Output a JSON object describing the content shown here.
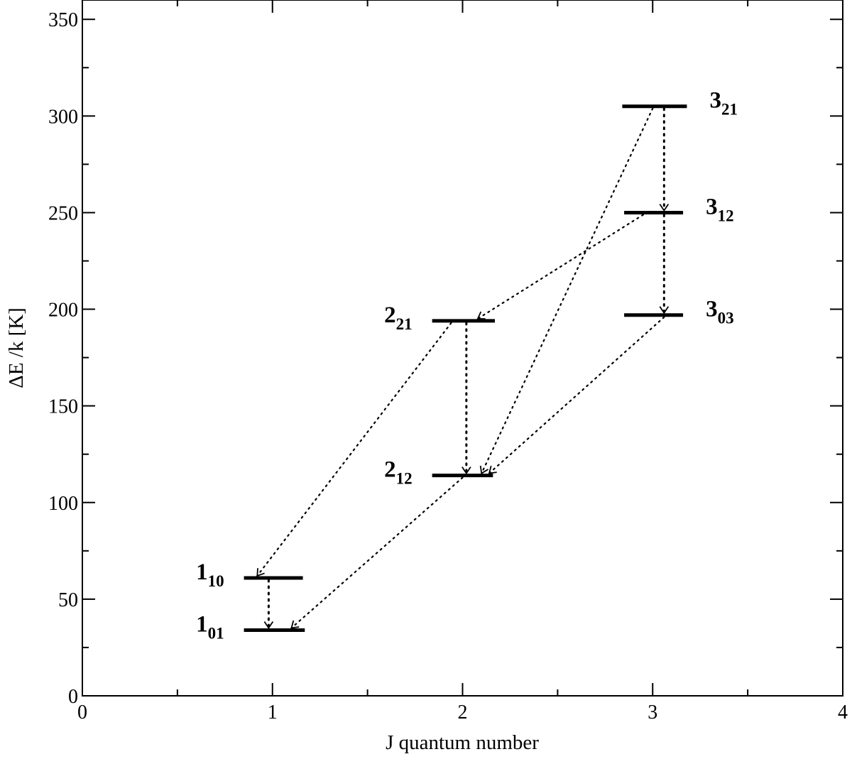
{
  "chart_data": {
    "type": "energy-level-diagram",
    "xlabel": "J  quantum number",
    "ylabel": "ΔE /k [K]",
    "xlim": [
      0,
      4
    ],
    "ylim": [
      0,
      360
    ],
    "x_ticks": [
      0,
      1,
      2,
      3,
      4
    ],
    "y_ticks": [
      0,
      50,
      100,
      150,
      200,
      250,
      300,
      350
    ],
    "x_minor_step": 0.5,
    "y_minor_step": 25,
    "grid": false,
    "levels": [
      {
        "id": "1_01",
        "main": "1",
        "sub": "01",
        "J": 1,
        "x0": 0.85,
        "x1": 1.17,
        "energy": 34
      },
      {
        "id": "1_10",
        "main": "1",
        "sub": "10",
        "J": 1,
        "x0": 0.85,
        "x1": 1.16,
        "energy": 61
      },
      {
        "id": "2_12",
        "main": "2",
        "sub": "12",
        "J": 2,
        "x0": 1.84,
        "x1": 2.16,
        "energy": 114
      },
      {
        "id": "2_21",
        "main": "2",
        "sub": "21",
        "J": 2,
        "x0": 1.84,
        "x1": 2.17,
        "energy": 194
      },
      {
        "id": "3_03",
        "main": "3",
        "sub": "03",
        "J": 3,
        "x0": 2.85,
        "x1": 3.16,
        "energy": 197
      },
      {
        "id": "3_12",
        "main": "3",
        "sub": "12",
        "J": 3,
        "x0": 2.85,
        "x1": 3.16,
        "energy": 250
      },
      {
        "id": "3_21",
        "main": "3",
        "sub": "21",
        "J": 3,
        "x0": 2.84,
        "x1": 3.18,
        "energy": 305
      }
    ],
    "transitions": [
      {
        "from": "1_10",
        "to": "1_01",
        "x_from": 0.98,
        "x_to": 0.98
      },
      {
        "from": "2_21",
        "to": "2_12",
        "x_from": 2.02,
        "x_to": 2.02
      },
      {
        "from": "3_21",
        "to": "3_12",
        "x_from": 3.06,
        "x_to": 3.06
      },
      {
        "from": "3_12",
        "to": "3_03",
        "x_from": 3.06,
        "x_to": 3.06
      },
      {
        "from": "2_21",
        "to": "1_10",
        "x_from": 1.94,
        "x_to": 0.92
      },
      {
        "from": "2_12",
        "to": "1_01",
        "x_from": 2.0,
        "x_to": 1.1
      },
      {
        "from": "3_12",
        "to": "2_21",
        "x_from": 2.95,
        "x_to": 2.08
      },
      {
        "from": "3_21",
        "to": "2_12",
        "x_from": 3.0,
        "x_to": 2.1
      },
      {
        "from": "3_03",
        "to": "2_12",
        "x_from": 3.06,
        "x_to": 2.14
      }
    ]
  }
}
